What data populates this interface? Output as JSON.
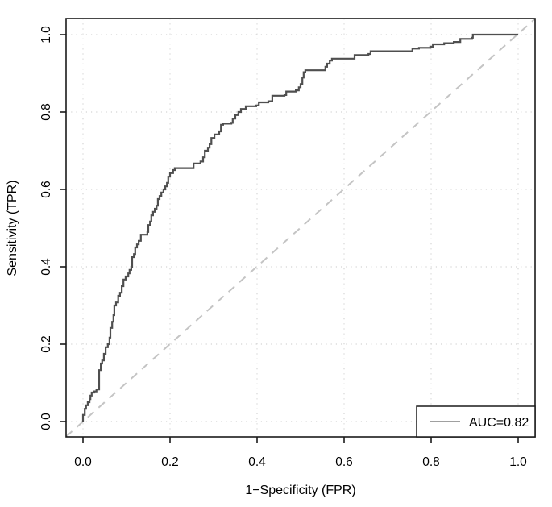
{
  "figure": {
    "background": "#ffffff"
  },
  "chart_data": {
    "type": "line",
    "subtype": "roc-step-curve",
    "title": "",
    "xlabel": "1−Specificity (FPR)",
    "ylabel": "Sensitivity (TPR)",
    "xlim": [
      0,
      1
    ],
    "ylim": [
      0,
      1
    ],
    "x_ticks": [
      0.0,
      0.2,
      0.4,
      0.6,
      0.8,
      1.0
    ],
    "y_ticks": [
      0.0,
      0.2,
      0.4,
      0.6,
      0.8,
      1.0
    ],
    "x_tick_labels": [
      "0.0",
      "0.2",
      "0.4",
      "0.6",
      "0.8",
      "1.0"
    ],
    "y_tick_labels": [
      "0.0",
      "0.2",
      "0.4",
      "0.6",
      "0.8",
      "1.0"
    ],
    "grid": "dotted",
    "colors": {
      "curve": "#4f4f4f",
      "chance_line": "#c4c4c4",
      "gridline": "#d4d4d4",
      "axis": "#1a1a1a",
      "legend_line": "#808080",
      "background": "#ffffff"
    },
    "legend": {
      "position": "bottomright",
      "entries": [
        {
          "label": "AUC=0.82",
          "line_color": "#808080"
        }
      ]
    },
    "series": [
      {
        "name": "ROC curve",
        "render": "step",
        "color": "#4f4f4f",
        "auc": 0.82,
        "points": [
          [
            0.0,
            0.0
          ],
          [
            0.0,
            0.017
          ],
          [
            0.004,
            0.033
          ],
          [
            0.007,
            0.042
          ],
          [
            0.011,
            0.05
          ],
          [
            0.015,
            0.058
          ],
          [
            0.017,
            0.067
          ],
          [
            0.02,
            0.075
          ],
          [
            0.026,
            0.078
          ],
          [
            0.031,
            0.083
          ],
          [
            0.037,
            0.1
          ],
          [
            0.037,
            0.133
          ],
          [
            0.041,
            0.15
          ],
          [
            0.044,
            0.158
          ],
          [
            0.048,
            0.175
          ],
          [
            0.052,
            0.192
          ],
          [
            0.057,
            0.2
          ],
          [
            0.061,
            0.217
          ],
          [
            0.063,
            0.242
          ],
          [
            0.067,
            0.258
          ],
          [
            0.07,
            0.275
          ],
          [
            0.072,
            0.3
          ],
          [
            0.076,
            0.308
          ],
          [
            0.081,
            0.325
          ],
          [
            0.085,
            0.333
          ],
          [
            0.089,
            0.35
          ],
          [
            0.093,
            0.367
          ],
          [
            0.098,
            0.375
          ],
          [
            0.104,
            0.383
          ],
          [
            0.107,
            0.392
          ],
          [
            0.111,
            0.4
          ],
          [
            0.113,
            0.425
          ],
          [
            0.117,
            0.433
          ],
          [
            0.12,
            0.45
          ],
          [
            0.124,
            0.458
          ],
          [
            0.128,
            0.467
          ],
          [
            0.133,
            0.483
          ],
          [
            0.148,
            0.49
          ],
          [
            0.15,
            0.508
          ],
          [
            0.154,
            0.517
          ],
          [
            0.157,
            0.533
          ],
          [
            0.161,
            0.542
          ],
          [
            0.165,
            0.55
          ],
          [
            0.169,
            0.558
          ],
          [
            0.172,
            0.575
          ],
          [
            0.176,
            0.583
          ],
          [
            0.18,
            0.592
          ],
          [
            0.185,
            0.6
          ],
          [
            0.189,
            0.608
          ],
          [
            0.193,
            0.617
          ],
          [
            0.196,
            0.633
          ],
          [
            0.2,
            0.642
          ],
          [
            0.207,
            0.65
          ],
          [
            0.211,
            0.655
          ],
          [
            0.25,
            0.655
          ],
          [
            0.254,
            0.667
          ],
          [
            0.27,
            0.672
          ],
          [
            0.276,
            0.683
          ],
          [
            0.28,
            0.7
          ],
          [
            0.287,
            0.708
          ],
          [
            0.291,
            0.717
          ],
          [
            0.295,
            0.733
          ],
          [
            0.302,
            0.742
          ],
          [
            0.313,
            0.75
          ],
          [
            0.317,
            0.767
          ],
          [
            0.322,
            0.77
          ],
          [
            0.341,
            0.772
          ],
          [
            0.344,
            0.783
          ],
          [
            0.35,
            0.792
          ],
          [
            0.357,
            0.8
          ],
          [
            0.363,
            0.808
          ],
          [
            0.374,
            0.815
          ],
          [
            0.398,
            0.817
          ],
          [
            0.404,
            0.825
          ],
          [
            0.426,
            0.828
          ],
          [
            0.435,
            0.842
          ],
          [
            0.463,
            0.844
          ],
          [
            0.467,
            0.853
          ],
          [
            0.489,
            0.856
          ],
          [
            0.496,
            0.864
          ],
          [
            0.5,
            0.872
          ],
          [
            0.504,
            0.889
          ],
          [
            0.507,
            0.903
          ],
          [
            0.511,
            0.908
          ],
          [
            0.554,
            0.908
          ],
          [
            0.557,
            0.917
          ],
          [
            0.561,
            0.925
          ],
          [
            0.567,
            0.933
          ],
          [
            0.572,
            0.938
          ],
          [
            0.62,
            0.938
          ],
          [
            0.624,
            0.947
          ],
          [
            0.656,
            0.95
          ],
          [
            0.661,
            0.957
          ],
          [
            0.752,
            0.957
          ],
          [
            0.757,
            0.964
          ],
          [
            0.772,
            0.966
          ],
          [
            0.798,
            0.969
          ],
          [
            0.804,
            0.975
          ],
          [
            0.83,
            0.978
          ],
          [
            0.852,
            0.981
          ],
          [
            0.867,
            0.989
          ],
          [
            0.894,
            0.992
          ],
          [
            0.896,
            1.0
          ],
          [
            1.0,
            1.0
          ]
        ]
      },
      {
        "name": "chance diagonal",
        "render": "dashed-line",
        "color": "#c4c4c4",
        "points": [
          [
            0,
            0
          ],
          [
            1,
            1
          ]
        ]
      }
    ]
  }
}
